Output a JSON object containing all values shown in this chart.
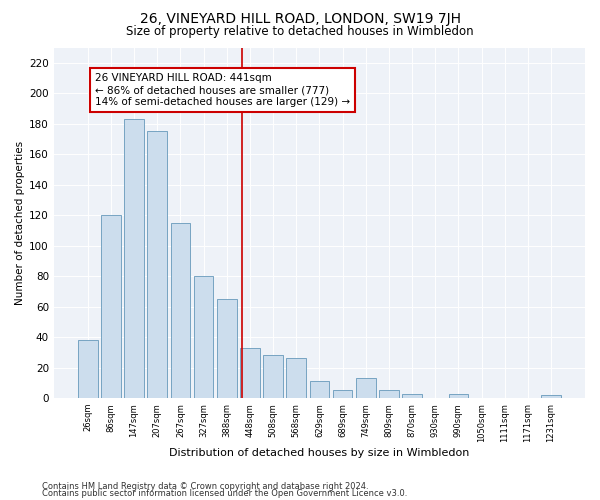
{
  "title": "26, VINEYARD HILL ROAD, LONDON, SW19 7JH",
  "subtitle": "Size of property relative to detached houses in Wimbledon",
  "xlabel": "Distribution of detached houses by size in Wimbledon",
  "ylabel": "Number of detached properties",
  "bar_color": "#ccdded",
  "bar_edge_color": "#6699bb",
  "background_color": "#ffffff",
  "plot_bg_color": "#eef2f8",
  "grid_color": "#ffffff",
  "annotation_text": "26 VINEYARD HILL ROAD: 441sqm\n← 86% of detached houses are smaller (777)\n14% of semi-detached houses are larger (129) →",
  "annotation_box_color": "#ffffff",
  "annotation_box_edge": "#cc0000",
  "vline_x": 6.65,
  "vline_color": "#cc0000",
  "categories": [
    "26sqm",
    "86sqm",
    "147sqm",
    "207sqm",
    "267sqm",
    "327sqm",
    "388sqm",
    "448sqm",
    "508sqm",
    "568sqm",
    "629sqm",
    "689sqm",
    "749sqm",
    "809sqm",
    "870sqm",
    "930sqm",
    "990sqm",
    "1050sqm",
    "1111sqm",
    "1171sqm",
    "1231sqm"
  ],
  "values": [
    38,
    120,
    183,
    175,
    115,
    80,
    65,
    33,
    28,
    26,
    11,
    5,
    13,
    5,
    3,
    0,
    3,
    0,
    0,
    0,
    2
  ],
  "ylim": [
    0,
    230
  ],
  "yticks": [
    0,
    20,
    40,
    60,
    80,
    100,
    120,
    140,
    160,
    180,
    200,
    220
  ],
  "footer1": "Contains HM Land Registry data © Crown copyright and database right 2024.",
  "footer2": "Contains public sector information licensed under the Open Government Licence v3.0."
}
